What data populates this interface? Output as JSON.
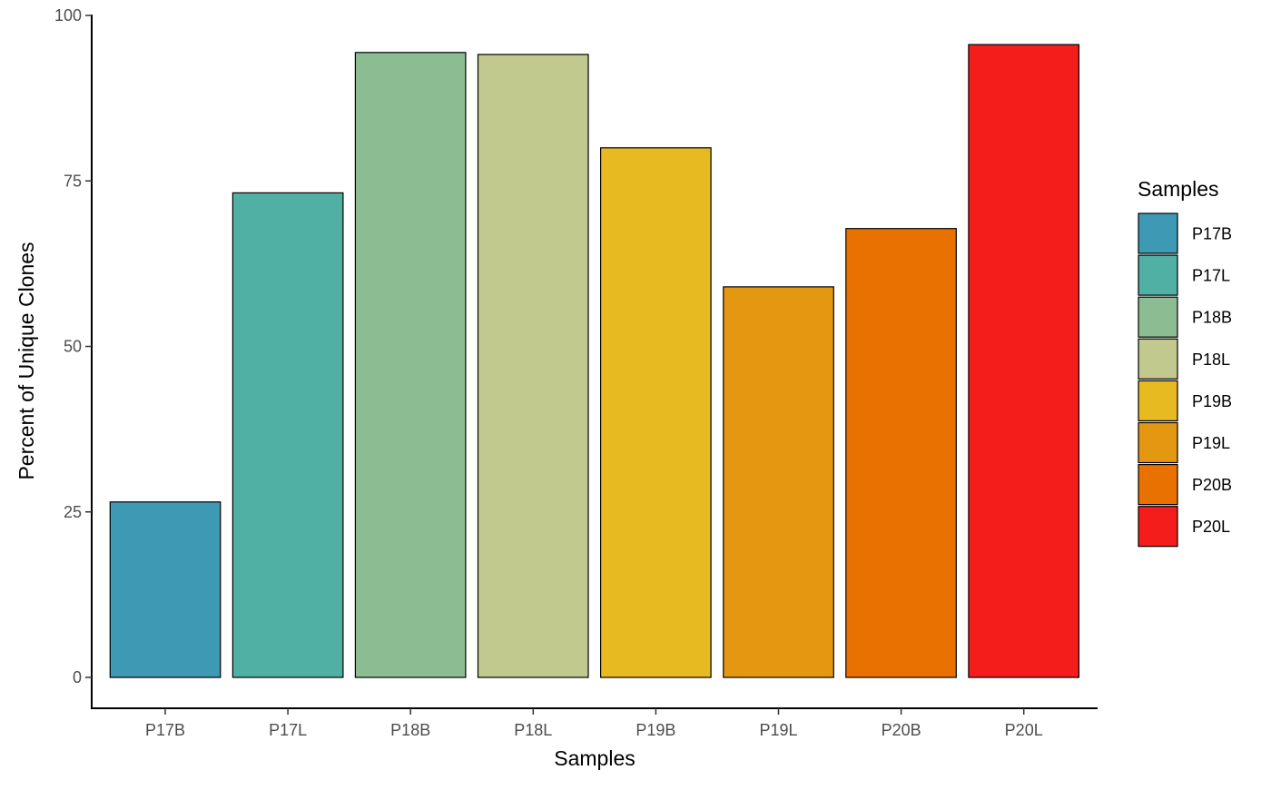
{
  "chart_data": {
    "type": "bar",
    "categories": [
      "P17B",
      "P17L",
      "P18B",
      "P18L",
      "P19B",
      "P19L",
      "P20B",
      "P20L"
    ],
    "values": [
      26.5,
      73.2,
      94.4,
      94.1,
      80.0,
      59.0,
      67.8,
      95.6
    ],
    "colors": [
      "#3E9AB4",
      "#4FB0A3",
      "#8BBC92",
      "#C1C98E",
      "#E8BA21",
      "#E49812",
      "#E97100",
      "#F51C1C"
    ],
    "xlabel": "Samples",
    "ylabel": "Percent of Unique Clones",
    "ylim": [
      0,
      100
    ],
    "yticks": [
      0,
      25,
      50,
      75,
      100
    ],
    "legend": {
      "title": "Samples",
      "entries": [
        "P17B",
        "P17L",
        "P18B",
        "P18L",
        "P19B",
        "P19L",
        "P20B",
        "P20L"
      ],
      "placement": "right"
    },
    "grid": false
  }
}
